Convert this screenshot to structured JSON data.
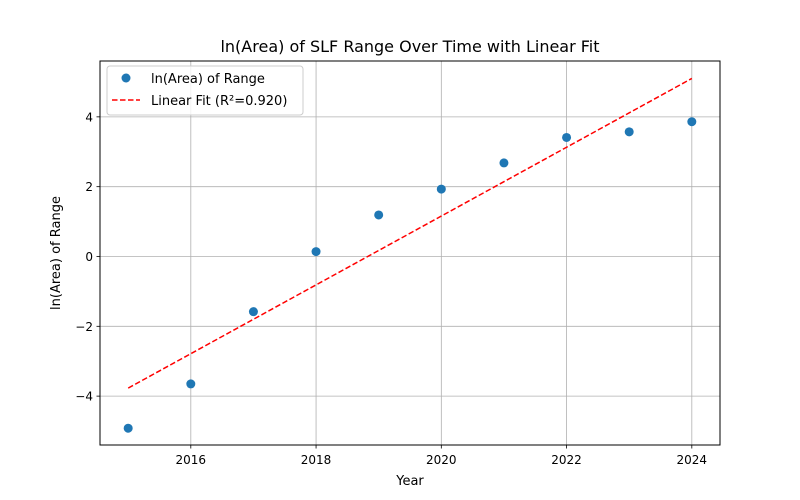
{
  "chart_data": {
    "type": "scatter",
    "title": "ln(Area) of SLF Range Over Time with Linear Fit",
    "xlabel": "Year",
    "ylabel": "ln(Area) of Range",
    "xlim": [
      2014.55,
      2024.45
    ],
    "ylim": [
      -5.4,
      5.6
    ],
    "xticks": [
      2016,
      2018,
      2020,
      2022,
      2024
    ],
    "yticks": [
      -4,
      -2,
      0,
      2,
      4
    ],
    "ytick_labels": [
      "−4",
      "−2",
      "0",
      "2",
      "4"
    ],
    "grid": true,
    "legend_position": "top-left",
    "series": [
      {
        "name": "ln(Area) of Range",
        "kind": "scatter",
        "color": "#1f77b4",
        "x": [
          2015,
          2016,
          2017,
          2018,
          2019,
          2020,
          2021,
          2022,
          2023,
          2024
        ],
        "y": [
          -4.92,
          -3.65,
          -1.58,
          0.14,
          1.19,
          1.93,
          2.68,
          3.41,
          3.57,
          3.86
        ]
      },
      {
        "name": "Linear Fit (R²=0.920)",
        "kind": "line",
        "style": "dashed",
        "color": "#ff0000",
        "x": [
          2015,
          2024
        ],
        "y": [
          -3.77,
          5.1
        ]
      }
    ]
  }
}
